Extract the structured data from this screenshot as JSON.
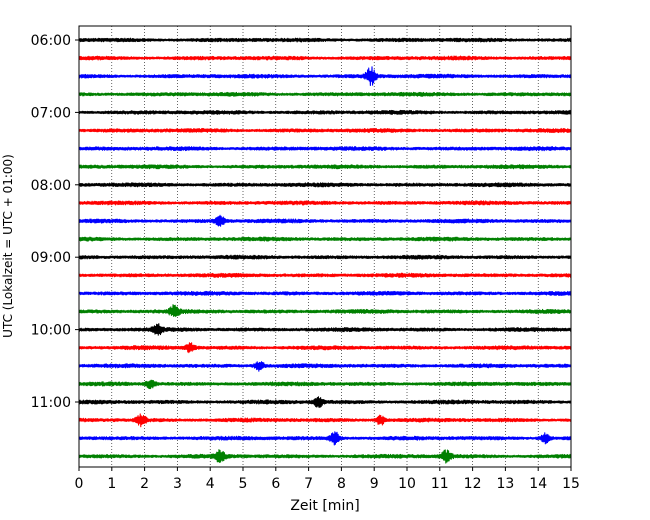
{
  "chart_data": {
    "type": "line",
    "title": "",
    "xlabel": "Zeit  [min]",
    "ylabel": "UTC (Lokalzeit = UTC + 01:00)",
    "xlim": [
      0,
      15
    ],
    "x_ticks": [
      "0",
      "1",
      "2",
      "3",
      "4",
      "5",
      "6",
      "7",
      "8",
      "9",
      "10",
      "11",
      "12",
      "13",
      "14",
      "15"
    ],
    "y_tick_labels": [
      "06:00",
      "07:00",
      "08:00",
      "09:00",
      "10:00",
      "11:00"
    ],
    "grid": "vertical dotted",
    "trace_start_times": [
      "06:00",
      "06:15",
      "06:30",
      "06:45",
      "07:00",
      "07:15",
      "07:30",
      "07:45",
      "08:00",
      "08:15",
      "08:30",
      "08:45",
      "09:00",
      "09:15",
      "09:30",
      "09:45",
      "10:00",
      "10:15",
      "10:30",
      "10:45",
      "11:00",
      "11:15",
      "11:30",
      "11:45"
    ],
    "color_cycle": [
      "#000000",
      "#ff0000",
      "#0000ff",
      "#008000"
    ],
    "events": [
      {
        "trace": "06:30",
        "minute": 8.9,
        "amplitude": 2.6
      },
      {
        "trace": "08:30",
        "minute": 4.3,
        "amplitude": 1.5
      },
      {
        "trace": "09:45",
        "minute": 2.9,
        "amplitude": 1.6
      },
      {
        "trace": "10:00",
        "minute": 2.4,
        "amplitude": 1.5
      },
      {
        "trace": "10:15",
        "minute": 3.4,
        "amplitude": 1.4
      },
      {
        "trace": "10:30",
        "minute": 5.5,
        "amplitude": 1.4
      },
      {
        "trace": "10:45",
        "minute": 2.2,
        "amplitude": 1.3
      },
      {
        "trace": "11:00",
        "minute": 7.3,
        "amplitude": 1.4
      },
      {
        "trace": "11:15",
        "minute": 1.9,
        "amplitude": 1.6
      },
      {
        "trace": "11:15",
        "minute": 9.2,
        "amplitude": 1.4
      },
      {
        "trace": "11:30",
        "minute": 7.8,
        "amplitude": 1.8
      },
      {
        "trace": "11:30",
        "minute": 14.2,
        "amplitude": 1.5
      },
      {
        "trace": "11:45",
        "minute": 4.3,
        "amplitude": 1.8
      },
      {
        "trace": "11:45",
        "minute": 11.2,
        "amplitude": 1.7
      }
    ]
  }
}
